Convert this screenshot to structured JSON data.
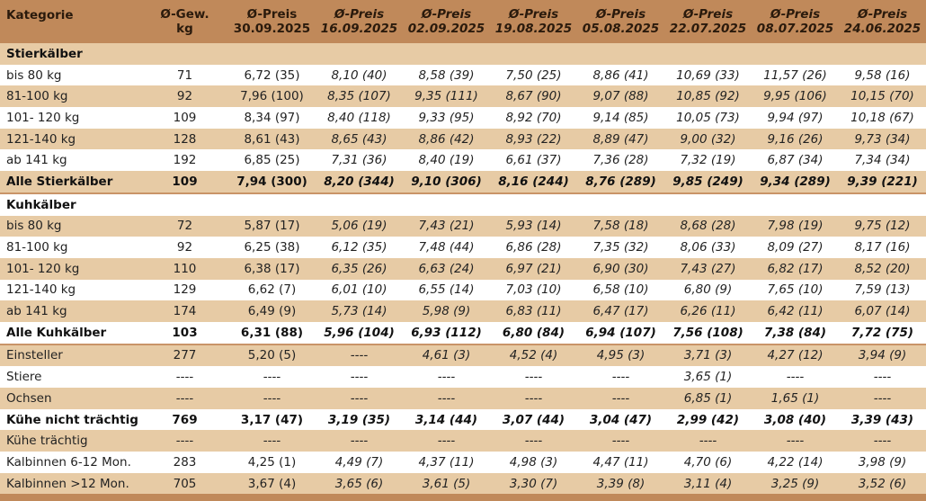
{
  "colors": {
    "header": "#c0895a",
    "stripe": "#e7cba5",
    "row": "#ffffff"
  },
  "header": {
    "category": "Kategorie",
    "weight": [
      "Ø-Gew.",
      "kg"
    ],
    "prices": [
      [
        "Ø-Preis",
        "30.09.2025"
      ],
      [
        "Ø-Preis",
        "16.09.2025"
      ],
      [
        "Ø-Preis",
        "02.09.2025"
      ],
      [
        "Ø-Preis",
        "19.08.2025"
      ],
      [
        "Ø-Preis",
        "05.08.2025"
      ],
      [
        "Ø-Preis",
        "22.07.2025"
      ],
      [
        "Ø-Preis",
        "08.07.2025"
      ],
      [
        "Ø-Preis",
        "24.06.2025"
      ]
    ]
  },
  "rows": [
    {
      "type": "section",
      "bg": "tan",
      "label": "Stierkälber",
      "cells": []
    },
    {
      "type": "normal",
      "bg": "white",
      "label": "bis 80 kg",
      "cells": [
        "71",
        "6,72 (35)",
        "8,10 (40)",
        "8,58 (39)",
        "7,50 (25)",
        "8,86 (41)",
        "10,69 (33)",
        "11,57 (26)",
        "9,58 (16)"
      ]
    },
    {
      "type": "normal",
      "bg": "tan",
      "label": "81-100 kg",
      "cells": [
        "92",
        "7,96 (100)",
        "8,35 (107)",
        "9,35 (111)",
        "8,67 (90)",
        "9,07 (88)",
        "10,85 (92)",
        "9,95 (106)",
        "10,15 (70)"
      ]
    },
    {
      "type": "normal",
      "bg": "white",
      "label": "101- 120 kg",
      "cells": [
        "109",
        "8,34 (97)",
        "8,40 (118)",
        "9,33 (95)",
        "8,92 (70)",
        "9,14 (85)",
        "10,05 (73)",
        "9,94 (97)",
        "10,18 (67)"
      ]
    },
    {
      "type": "normal",
      "bg": "tan",
      "label": "121-140 kg",
      "cells": [
        "128",
        "8,61 (43)",
        "8,65 (43)",
        "8,86 (42)",
        "8,93 (22)",
        "8,89 (47)",
        "9,00 (32)",
        "9,16 (26)",
        "9,73 (34)"
      ]
    },
    {
      "type": "normal",
      "bg": "white",
      "label": "ab 141 kg",
      "cells": [
        "192",
        "6,85 (25)",
        "7,31 (36)",
        "8,40 (19)",
        "6,61 (37)",
        "7,36 (28)",
        "7,32 (19)",
        "6,87 (34)",
        "7,34 (34)"
      ]
    },
    {
      "type": "total",
      "bg": "tan",
      "sep": true,
      "label": "Alle Stierkälber",
      "cells": [
        "109",
        "7,94 (300)",
        "8,20 (344)",
        "9,10 (306)",
        "8,16 (244)",
        "8,76 (289)",
        "9,85 (249)",
        "9,34 (289)",
        "9,39 (221)"
      ]
    },
    {
      "type": "section",
      "bg": "white",
      "label": "Kuhkälber",
      "cells": []
    },
    {
      "type": "normal",
      "bg": "tan",
      "label": "bis 80 kg",
      "cells": [
        "72",
        "5,87 (17)",
        "5,06 (19)",
        "7,43 (21)",
        "5,93 (14)",
        "7,58 (18)",
        "8,68 (28)",
        "7,98 (19)",
        "9,75 (12)"
      ]
    },
    {
      "type": "normal",
      "bg": "white",
      "label": "81-100 kg",
      "cells": [
        "92",
        "6,25 (38)",
        "6,12 (35)",
        "7,48 (44)",
        "6,86 (28)",
        "7,35 (32)",
        "8,06 (33)",
        "8,09 (27)",
        "8,17 (16)"
      ]
    },
    {
      "type": "normal",
      "bg": "tan",
      "label": "101- 120 kg",
      "cells": [
        "110",
        "6,38 (17)",
        "6,35 (26)",
        "6,63 (24)",
        "6,97 (21)",
        "6,90 (30)",
        "7,43 (27)",
        "6,82 (17)",
        "8,52 (20)"
      ]
    },
    {
      "type": "normal",
      "bg": "white",
      "label": "121-140 kg",
      "cells": [
        "129",
        "6,62 (7)",
        "6,01 (10)",
        "6,55 (14)",
        "7,03 (10)",
        "6,58 (10)",
        "6,80 (9)",
        "7,65 (10)",
        "7,59 (13)"
      ]
    },
    {
      "type": "normal",
      "bg": "tan",
      "label": "ab 141 kg",
      "cells": [
        "174",
        "6,49 (9)",
        "5,73 (14)",
        "5,98 (9)",
        "6,83 (11)",
        "6,47 (17)",
        "6,26 (11)",
        "6,42 (11)",
        "6,07 (14)"
      ]
    },
    {
      "type": "total",
      "bg": "white",
      "sep": true,
      "label": "Alle Kuhkälber",
      "cells": [
        "103",
        "6,31 (88)",
        "5,96 (104)",
        "6,93 (112)",
        "6,80 (84)",
        "6,94 (107)",
        "7,56 (108)",
        "7,38 (84)",
        "7,72 (75)"
      ]
    },
    {
      "type": "normal",
      "bg": "tan",
      "label": "Einsteller",
      "cells": [
        "277",
        "5,20 (5)",
        "----",
        "4,61 (3)",
        "4,52 (4)",
        "4,95 (3)",
        "3,71 (3)",
        "4,27 (12)",
        "3,94 (9)"
      ]
    },
    {
      "type": "normal",
      "bg": "white",
      "label": "Stiere",
      "cells": [
        "----",
        "----",
        "----",
        "----",
        "----",
        "----",
        "3,65 (1)",
        "----",
        "----"
      ]
    },
    {
      "type": "normal",
      "bg": "tan",
      "label": "Ochsen",
      "cells": [
        "----",
        "----",
        "----",
        "----",
        "----",
        "----",
        "6,85 (1)",
        "1,65 (1)",
        "----"
      ]
    },
    {
      "type": "total",
      "bg": "white",
      "label": "Kühe nicht trächtig",
      "cells": [
        "769",
        "3,17 (47)",
        "3,19 (35)",
        "3,14 (44)",
        "3,07 (44)",
        "3,04 (47)",
        "2,99 (42)",
        "3,08 (40)",
        "3,39 (43)"
      ]
    },
    {
      "type": "normal",
      "bg": "tan",
      "label": "Kühe trächtig",
      "cells": [
        "----",
        "----",
        "----",
        "----",
        "----",
        "----",
        "----",
        "----",
        "----"
      ]
    },
    {
      "type": "normal",
      "bg": "white",
      "label": "Kalbinnen 6-12 Mon.",
      "cells": [
        "283",
        "4,25 (1)",
        "4,49 (7)",
        "4,37 (11)",
        "4,98 (3)",
        "4,47 (11)",
        "4,70 (6)",
        "4,22 (14)",
        "3,98 (9)"
      ]
    },
    {
      "type": "normal",
      "bg": "tan",
      "label": "Kalbinnen >12 Mon.",
      "cells": [
        "705",
        "3,67 (4)",
        "3,65 (6)",
        "3,61 (5)",
        "3,30 (7)",
        "3,39 (8)",
        "3,11 (4)",
        "3,25 (9)",
        "3,52 (6)"
      ]
    }
  ]
}
